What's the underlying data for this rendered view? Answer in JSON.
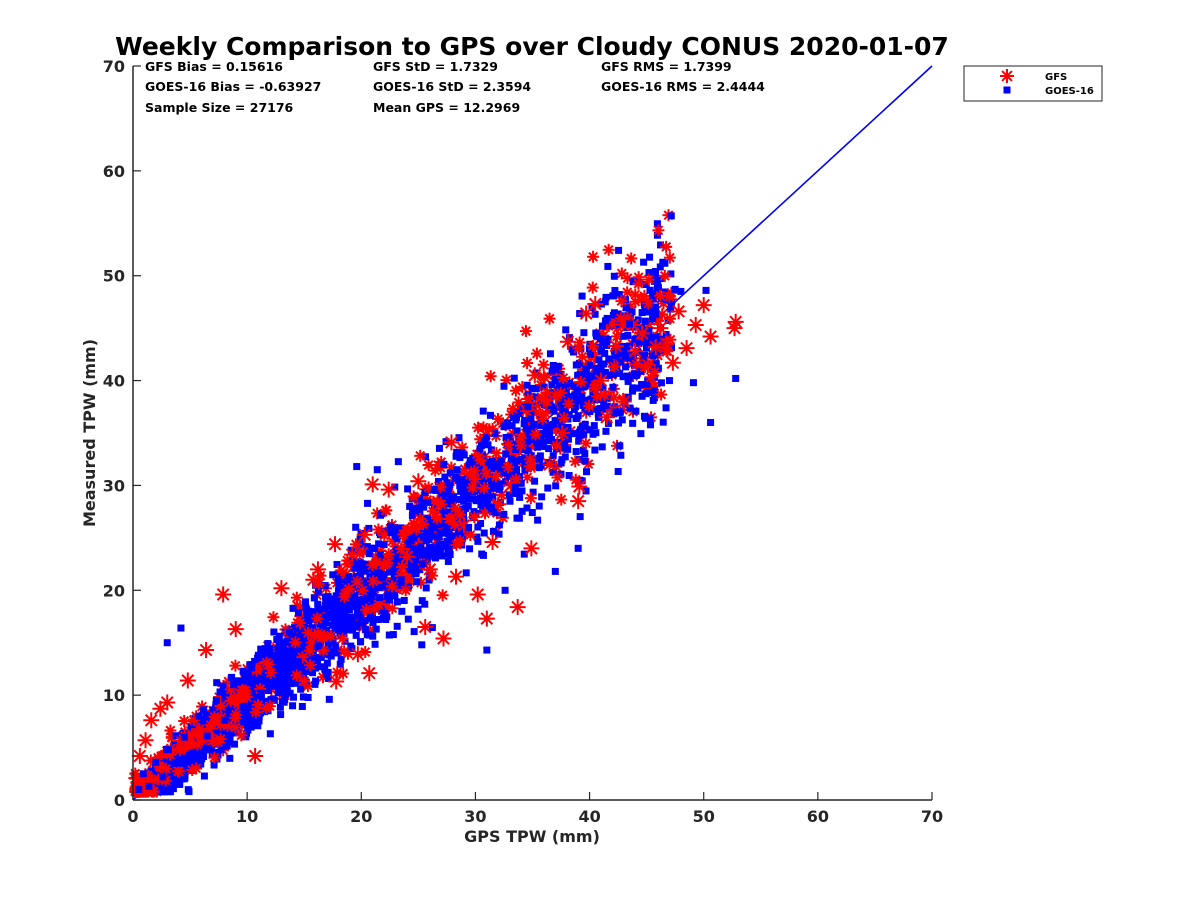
{
  "chart_data": {
    "type": "scatter",
    "title": "Weekly Comparison to GPS over Cloudy CONUS 2020-01-07",
    "xlabel": "GPS TPW (mm)",
    "ylabel": "Measured TPW (mm)",
    "xlim": [
      0,
      70
    ],
    "ylim": [
      0,
      70
    ],
    "xticks": [
      "0",
      "10",
      "20",
      "30",
      "40",
      "50",
      "60",
      "70"
    ],
    "yticks": [
      "0",
      "10",
      "20",
      "30",
      "40",
      "50",
      "60",
      "70"
    ],
    "grid": false,
    "legend_position": "outside top-right",
    "stats": [
      [
        "GFS Bias = 0.15616",
        "GFS StD = 1.7329",
        "GFS RMS = 1.7399"
      ],
      [
        "GOES-16 Bias = -0.63927",
        "GOES-16 StD = 2.3594",
        "GOES-16 RMS = 2.4444"
      ],
      [
        "Sample Size = 27176",
        "Mean GPS = 12.2969",
        ""
      ]
    ],
    "reference_line": {
      "x": [
        0,
        70
      ],
      "y": [
        0,
        70
      ],
      "color": "#0000ff"
    },
    "series": [
      {
        "name": "GFS",
        "marker": "asterisk",
        "color": "#ff0000",
        "points": [
          [
            0.3,
            2.1
          ],
          [
            0.6,
            4.2
          ],
          [
            1.1,
            5.7
          ],
          [
            1.6,
            7.6
          ],
          [
            2.4,
            8.7
          ],
          [
            3.0,
            9.3
          ],
          [
            4.8,
            11.4
          ],
          [
            6.4,
            14.3
          ],
          [
            7.9,
            19.6
          ],
          [
            9.0,
            16.3
          ],
          [
            10.7,
            4.2
          ],
          [
            13.0,
            20.2
          ],
          [
            15.8,
            21.0
          ],
          [
            16.2,
            22.0
          ],
          [
            17.8,
            11.3
          ],
          [
            17.7,
            24.4
          ],
          [
            19.2,
            23.4
          ],
          [
            19.7,
            13.9
          ],
          [
            20.3,
            25.3
          ],
          [
            20.7,
            12.1
          ],
          [
            21.0,
            30.1
          ],
          [
            22.4,
            29.6
          ],
          [
            24.0,
            23.2
          ],
          [
            25.0,
            30.4
          ],
          [
            25.6,
            16.5
          ],
          [
            26.0,
            22.0
          ],
          [
            27.2,
            15.4
          ],
          [
            27.9,
            34.1
          ],
          [
            28.3,
            21.3
          ],
          [
            29.0,
            26.2
          ],
          [
            30.2,
            19.6
          ],
          [
            31.0,
            17.3
          ],
          [
            31.5,
            24.6
          ],
          [
            32.0,
            28.2
          ],
          [
            33.1,
            30.0
          ],
          [
            33.7,
            18.4
          ],
          [
            34.9,
            24.0
          ],
          [
            35.2,
            40.5
          ],
          [
            36.5,
            32.0
          ],
          [
            37.6,
            35.0
          ],
          [
            38.1,
            43.7
          ],
          [
            39.1,
            29.9
          ],
          [
            39.0,
            28.5
          ],
          [
            39.7,
            46.4
          ],
          [
            40.5,
            47.3
          ],
          [
            41.5,
            36.5
          ],
          [
            42.3,
            43.3
          ],
          [
            43.0,
            38.0
          ],
          [
            43.8,
            45.3
          ],
          [
            44.6,
            44.5
          ],
          [
            45.1,
            41.5
          ],
          [
            45.8,
            43.2
          ],
          [
            46.2,
            45.0
          ],
          [
            46.7,
            43.5
          ],
          [
            47.3,
            41.7
          ],
          [
            47.8,
            46.6
          ],
          [
            48.5,
            43.1
          ],
          [
            49.3,
            45.3
          ],
          [
            50.0,
            47.2
          ],
          [
            50.6,
            44.2
          ],
          [
            52.8,
            45.6
          ],
          [
            52.7,
            45.0
          ],
          [
            44.0,
            42.8
          ],
          [
            41.0,
            40.0
          ],
          [
            36.0,
            38.2
          ]
        ]
      },
      {
        "name": "GOES-16",
        "marker": "square",
        "color": "#0000ff",
        "points": [
          [
            0.5,
            1.0
          ],
          [
            0.9,
            2.5
          ],
          [
            1.4,
            1.3
          ],
          [
            2.0,
            3.6
          ],
          [
            2.6,
            2.2
          ],
          [
            3.1,
            4.8
          ],
          [
            3.8,
            3.5
          ],
          [
            4.5,
            6.0
          ],
          [
            5.1,
            4.3
          ],
          [
            5.8,
            8.0
          ],
          [
            6.5,
            6.1
          ],
          [
            7.3,
            9.5
          ],
          [
            8.0,
            7.6
          ],
          [
            8.8,
            11.0
          ],
          [
            9.6,
            8.9
          ],
          [
            10.4,
            12.6
          ],
          [
            11.2,
            10.2
          ],
          [
            12.0,
            14.4
          ],
          [
            12.9,
            11.5
          ],
          [
            13.7,
            16.0
          ],
          [
            14.5,
            13.2
          ],
          [
            15.4,
            18.0
          ],
          [
            16.2,
            14.7
          ],
          [
            17.1,
            19.4
          ],
          [
            18.0,
            16.2
          ],
          [
            18.9,
            21.3
          ],
          [
            19.8,
            17.6
          ],
          [
            20.7,
            23.5
          ],
          [
            21.6,
            19.3
          ],
          [
            22.6,
            25.5
          ],
          [
            23.5,
            21.0
          ],
          [
            24.5,
            27.8
          ],
          [
            25.4,
            22.5
          ],
          [
            26.4,
            29.6
          ],
          [
            27.4,
            24.4
          ],
          [
            28.4,
            31.5
          ],
          [
            29.4,
            26.0
          ],
          [
            30.4,
            33.5
          ],
          [
            31.4,
            27.9
          ],
          [
            32.5,
            35.6
          ],
          [
            33.5,
            29.8
          ],
          [
            34.6,
            37.5
          ],
          [
            35.6,
            31.7
          ],
          [
            36.7,
            39.6
          ],
          [
            37.8,
            33.6
          ],
          [
            38.9,
            41.5
          ],
          [
            40.0,
            35.3
          ],
          [
            41.2,
            43.6
          ],
          [
            42.3,
            37.0
          ],
          [
            43.5,
            45.4
          ],
          [
            44.6,
            38.5
          ],
          [
            45.8,
            46.8
          ],
          [
            47.0,
            40.0
          ],
          [
            48.0,
            48.5
          ],
          [
            49.1,
            39.8
          ],
          [
            50.2,
            48.6
          ],
          [
            50.6,
            36.0
          ],
          [
            52.8,
            40.2
          ],
          [
            31.0,
            14.3
          ],
          [
            37.0,
            21.8
          ],
          [
            39.0,
            24.0
          ],
          [
            19.6,
            31.8
          ],
          [
            21.4,
            31.5
          ],
          [
            25.3,
            14.8
          ],
          [
            17.2,
            9.6
          ],
          [
            4.2,
            16.4
          ],
          [
            3.0,
            15.0
          ],
          [
            41.4,
            45.7
          ],
          [
            47.5,
            48.7
          ],
          [
            46.7,
            37.4
          ],
          [
            44.9,
            36.4
          ],
          [
            32.6,
            20.0
          ]
        ]
      }
    ]
  }
}
